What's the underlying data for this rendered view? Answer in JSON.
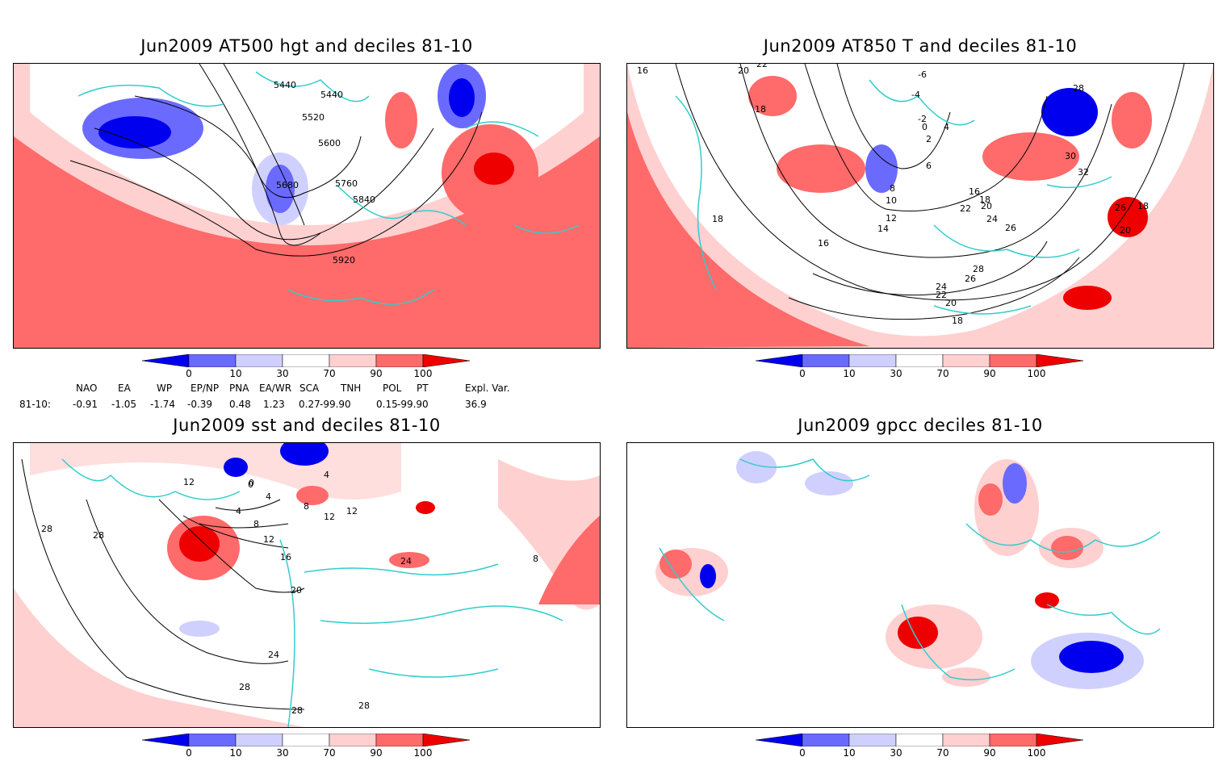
{
  "panels": [
    {
      "title": "Jun2009 AT500 hgt and deciles 81-10",
      "contour_labels": [
        "5440",
        "5440",
        "5520",
        "5600",
        "5680",
        "5760",
        "5840",
        "5920"
      ]
    },
    {
      "title": "Jun2009 AT850 T and deciles 81-10",
      "contour_labels": [
        "16",
        "22",
        "20",
        "18",
        "-6",
        "-4",
        "-2",
        "0",
        "2",
        "4",
        "6",
        "8",
        "10",
        "12",
        "14",
        "16",
        "18",
        "20",
        "22",
        "24",
        "26",
        "28",
        "30",
        "32",
        "26",
        "18",
        "20",
        "18",
        "16",
        "28",
        "26",
        "24",
        "22",
        "20",
        "18"
      ]
    },
    {
      "title": "Jun2009 sst and deciles 81-10",
      "contour_labels": [
        "28",
        "28",
        "12",
        "0",
        "4",
        "4",
        "8",
        "12",
        "16",
        "20",
        "24",
        "28",
        "28",
        "28",
        "24",
        "0",
        "4",
        "8",
        "12",
        "12",
        "8"
      ]
    },
    {
      "title": "Jun2009 gpcc deciles 81-10",
      "contour_labels": []
    }
  ],
  "colorbar": {
    "labels": [
      "0",
      "10",
      "30",
      "70",
      "90",
      "100"
    ],
    "colors": [
      "#0000ee",
      "#6a6aff",
      "#d0d0ff",
      "#ffffff",
      "#ffd0d0",
      "#ff6a6a",
      "#ee0000"
    ]
  },
  "indices": {
    "headers": [
      "NAO",
      "EA",
      "WP",
      "EP/NP",
      "PNA",
      "EA/WR",
      "SCA",
      "TNH",
      "POL",
      "PT",
      "Expl. Var."
    ],
    "row_label": "81-10:",
    "values": [
      "-0.91",
      "-1.05",
      "-1.74",
      "-0.39",
      "0.48",
      "1.23",
      "0.27",
      "-99.90",
      "0.15",
      "-99.90",
      "36.9"
    ]
  }
}
